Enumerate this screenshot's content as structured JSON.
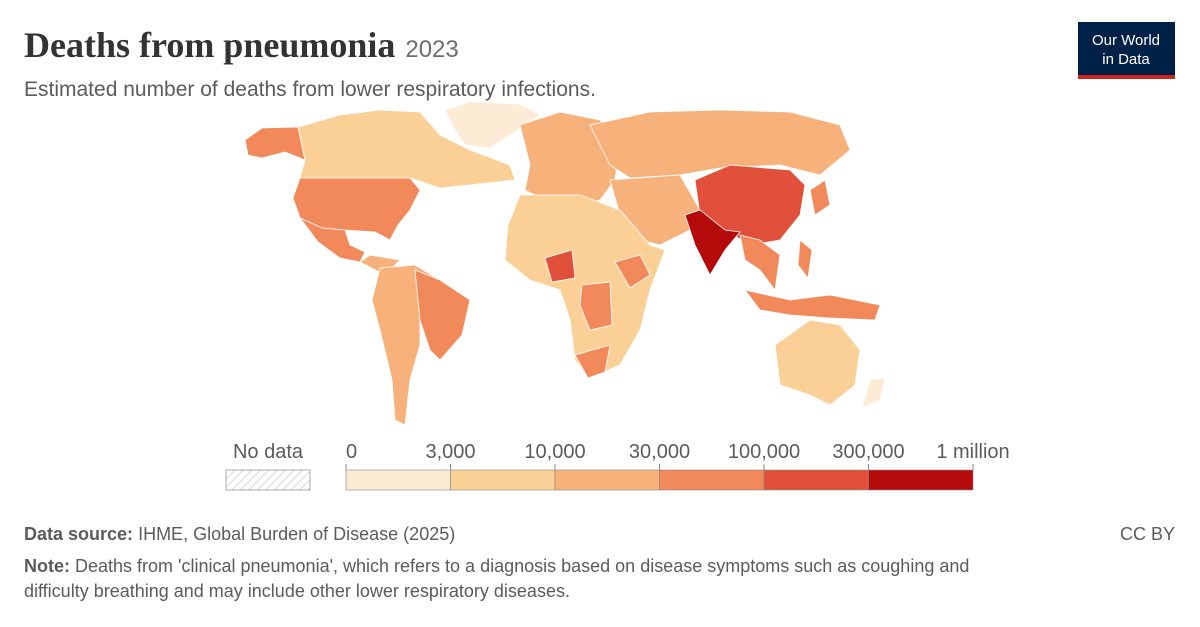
{
  "header": {
    "title": "Deaths from pneumonia",
    "year": "2023",
    "subtitle": "Estimated number of deaths from lower respiratory infections.",
    "logo": [
      "Our World",
      "in Data"
    ]
  },
  "legend": {
    "no_data_label": "No data",
    "ticks": [
      0,
      {
        "value": 3000,
        "label": "3,000"
      },
      {
        "value": 10000,
        "label": "10,000"
      },
      {
        "value": 30000,
        "label": "30,000"
      },
      {
        "value": 100000,
        "label": "100,000"
      },
      {
        "value": 300000,
        "label": "300,000"
      },
      {
        "value": 1000000,
        "label": "1 million"
      }
    ],
    "colors": [
      "#fdebd6",
      "#fbd096",
      "#f7b27c",
      "#f2895a",
      "#e0503a",
      "#b50a0a"
    ]
  },
  "footer": {
    "source_label": "Data source:",
    "source": "IHME, Global Burden of Disease (2025)",
    "license": "CC BY",
    "note_label": "Note:",
    "note_lines": [
      "Deaths from 'clinical pneumonia', which refers to a diagnosis based on disease symptoms such as coughing and",
      "difficulty breathing and may include other lower respiratory diseases."
    ]
  }
}
